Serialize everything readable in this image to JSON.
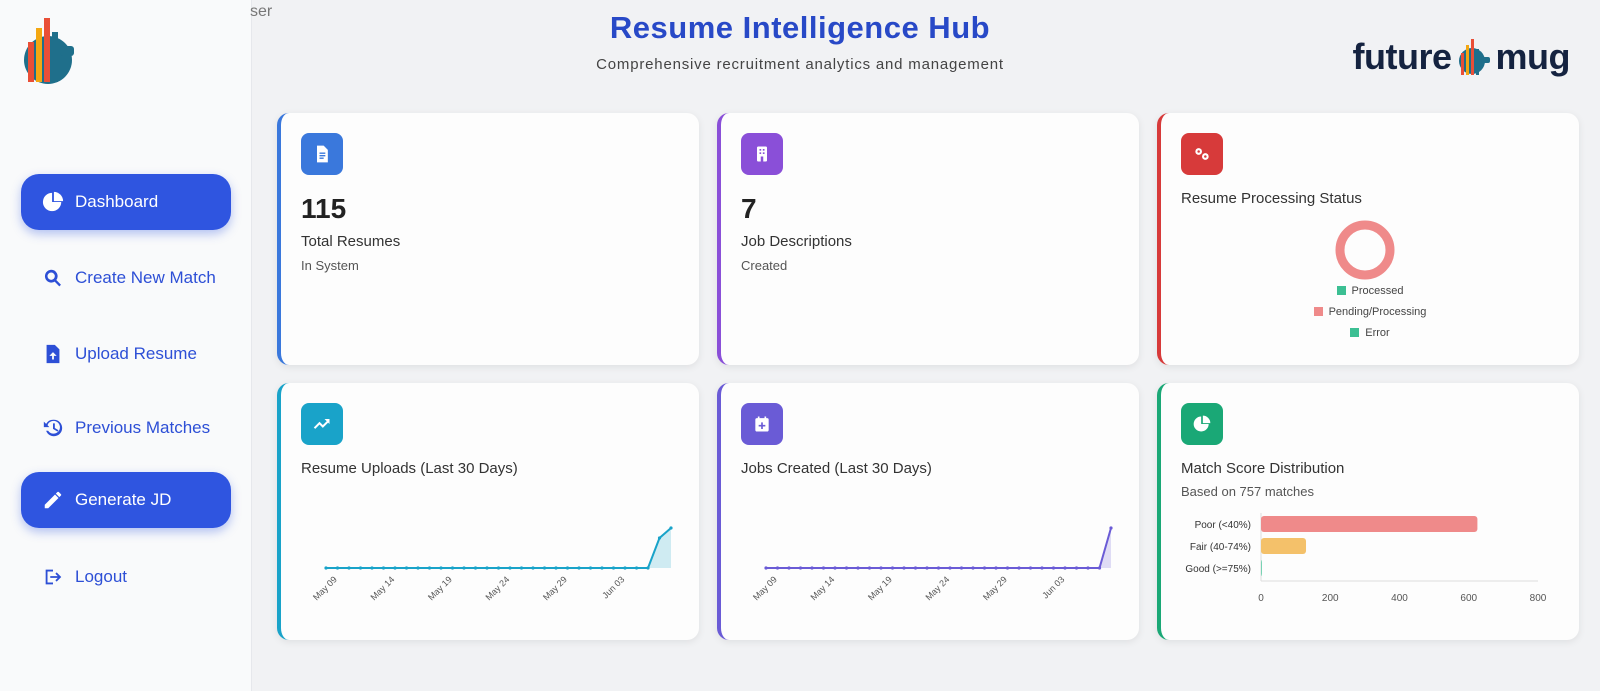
{
  "user_fragment": "ser",
  "header": {
    "title": "Resume Intelligence Hub",
    "subtitle": "Comprehensive recruitment analytics and management",
    "brand_left": "future",
    "brand_right": "mug"
  },
  "sidebar": {
    "logo_icon": "bar-chart-logo-icon",
    "items": [
      {
        "label": "Dashboard",
        "icon": "pie-chart-icon",
        "active": true
      },
      {
        "label": "Create New Match",
        "icon": "search-icon",
        "active": false
      },
      {
        "label": "Upload Resume",
        "icon": "file-upload-icon",
        "active": false
      },
      {
        "label": "Previous Matches",
        "icon": "history-icon",
        "active": false
      },
      {
        "label": "Generate JD",
        "icon": "pencil-icon",
        "active": true
      },
      {
        "label": "Logout",
        "icon": "logout-icon",
        "active": false
      }
    ]
  },
  "cards": {
    "resumes": {
      "value": "115",
      "label": "Total Resumes",
      "sub": "In System",
      "icon": "document-icon",
      "accent": "#3a78dc"
    },
    "jobs": {
      "value": "7",
      "label": "Job Descriptions",
      "sub": "Created",
      "icon": "building-icon",
      "accent": "#8a4fd8"
    },
    "processing": {
      "title": "Resume Processing Status",
      "icon": "gears-icon",
      "accent": "#d73a3a",
      "legend": [
        {
          "label": "Processed",
          "color": "#3cbf93"
        },
        {
          "label": "Pending/Processing",
          "color": "#ef8a8a"
        },
        {
          "label": "Error",
          "color": "#3cbf93"
        }
      ]
    },
    "uploads": {
      "title": "Resume Uploads (Last 30 Days)",
      "icon": "trending-up-icon",
      "accent": "#19a3c9"
    },
    "jobs_created": {
      "title": "Jobs Created (Last 30 Days)",
      "icon": "calendar-plus-icon",
      "accent": "#6a5bd6"
    },
    "match_scores": {
      "title": "Match Score Distribution",
      "sub": "Based on 757 matches",
      "icon": "pie-chart-icon",
      "accent": "#1aa876"
    }
  },
  "chart_data": [
    {
      "type": "pie",
      "labels": [
        "Processed",
        "Pending/Processing",
        "Error"
      ],
      "values": [
        0,
        115,
        0
      ],
      "colors": [
        "#3cbf93",
        "#ef8a8a",
        "#3cbf93"
      ],
      "donut": true,
      "legend": "bottom"
    },
    {
      "type": "area",
      "x": [
        "May 08",
        "May 09",
        "May 10",
        "May 11",
        "May 12",
        "May 13",
        "May 14",
        "May 15",
        "May 16",
        "May 17",
        "May 18",
        "May 19",
        "May 20",
        "May 21",
        "May 22",
        "May 23",
        "May 24",
        "May 25",
        "May 26",
        "May 27",
        "May 28",
        "May 29",
        "May 30",
        "May 31",
        "Jun 01",
        "Jun 02",
        "Jun 03",
        "Jun 04",
        "Jun 05",
        "Jun 06",
        "Jun 07"
      ],
      "y": [
        0,
        0,
        0,
        0,
        0,
        0,
        0,
        0,
        0,
        0,
        0,
        0,
        0,
        0,
        0,
        0,
        0,
        0,
        0,
        0,
        0,
        0,
        0,
        0,
        0,
        0,
        0,
        0,
        0,
        15,
        20
      ],
      "xticks": [
        "May 09",
        "May 14",
        "May 19",
        "May 24",
        "May 29",
        "Jun 03"
      ],
      "color": "#19a3c9",
      "grid": false
    },
    {
      "type": "area",
      "x": [
        "May 08",
        "May 09",
        "May 10",
        "May 11",
        "May 12",
        "May 13",
        "May 14",
        "May 15",
        "May 16",
        "May 17",
        "May 18",
        "May 19",
        "May 20",
        "May 21",
        "May 22",
        "May 23",
        "May 24",
        "May 25",
        "May 26",
        "May 27",
        "May 28",
        "May 29",
        "May 30",
        "May 31",
        "Jun 01",
        "Jun 02",
        "Jun 03",
        "Jun 04",
        "Jun 05",
        "Jun 06",
        "Jun 07"
      ],
      "y": [
        0,
        0,
        0,
        0,
        0,
        0,
        0,
        0,
        0,
        0,
        0,
        0,
        0,
        0,
        0,
        0,
        0,
        0,
        0,
        0,
        0,
        0,
        0,
        0,
        0,
        0,
        0,
        0,
        0,
        0,
        7
      ],
      "xticks": [
        "May 09",
        "May 14",
        "May 19",
        "May 24",
        "May 29",
        "Jun 03"
      ],
      "color": "#6a5bd6",
      "grid": false
    },
    {
      "type": "bar",
      "orientation": "horizontal",
      "categories": [
        "Poor (<40%)",
        "Fair (40-74%)",
        "Good (>=75%)"
      ],
      "values": [
        625,
        130,
        2
      ],
      "colors": [
        "#ef8a8a",
        "#f4c16a",
        "#3cbf93"
      ],
      "xlim": [
        0,
        800
      ],
      "xticks": [
        "0",
        "200",
        "400",
        "600",
        "800"
      ],
      "grid": false
    }
  ]
}
